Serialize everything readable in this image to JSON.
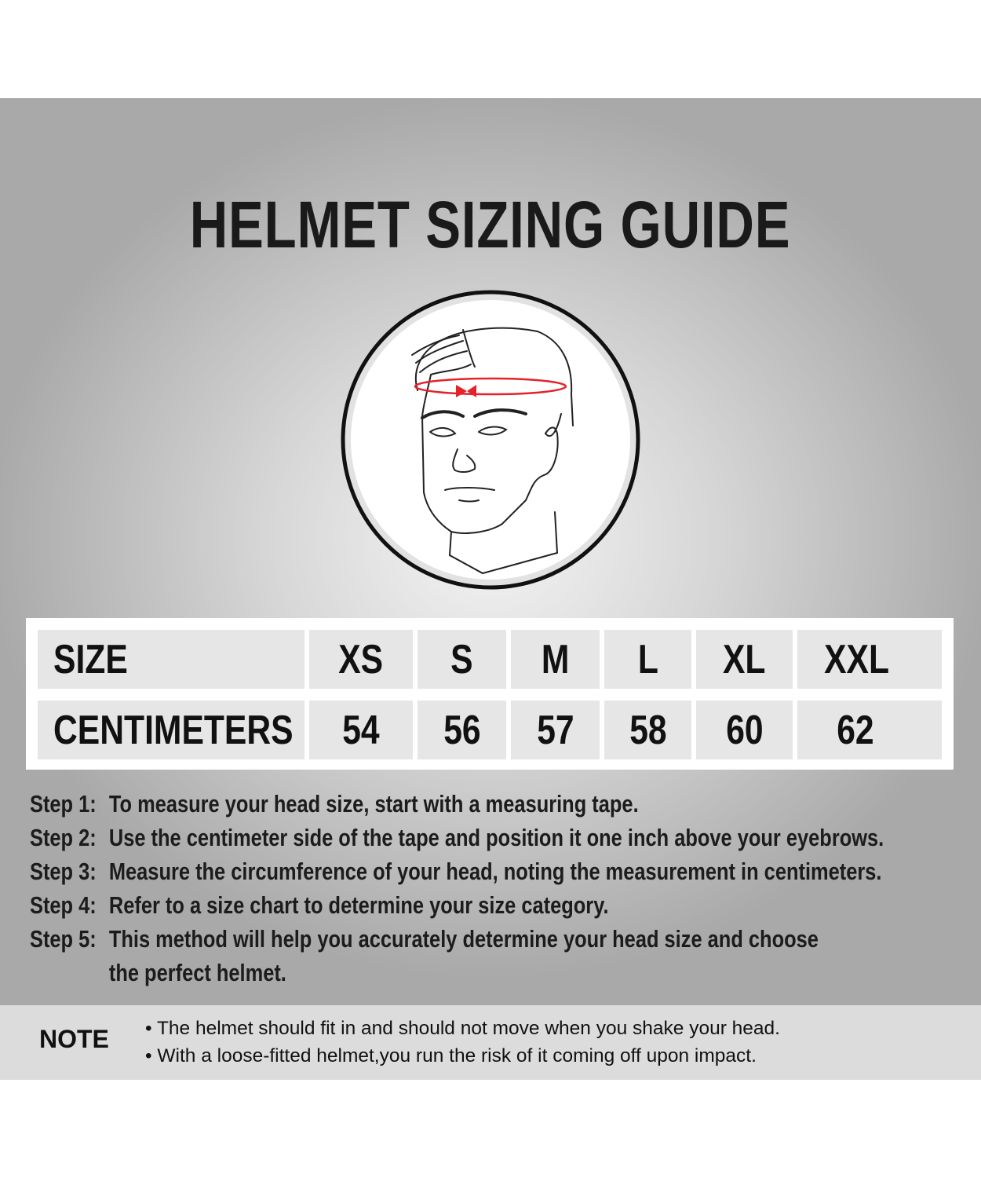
{
  "title": "HELMET SIZING GUIDE",
  "illustration": {
    "icon": "head-measurement-illustration",
    "tape_color": "#e5222a"
  },
  "size_table": {
    "row_headers": [
      "SIZE",
      "CENTIMETERS"
    ],
    "sizes": [
      "XS",
      "S",
      "M",
      "L",
      "XL",
      "XXL"
    ],
    "centimeters": [
      "54",
      "56",
      "57",
      "58",
      "60",
      "62"
    ]
  },
  "steps": [
    {
      "label": "Step 1:",
      "text": "To measure your head size, start with a measuring tape."
    },
    {
      "label": "Step 2:",
      "text": "Use the centimeter side of the tape and position it one inch above your eyebrows."
    },
    {
      "label": "Step 3:",
      "text": "Measure the circumference of your head, noting the measurement in centimeters."
    },
    {
      "label": "Step 4:",
      "text": "Refer to a size chart to determine your size category."
    },
    {
      "label": "Step 5:",
      "text": "This method will help you accurately determine your head size and choose",
      "continuation": "the perfect helmet."
    }
  ],
  "note": {
    "label": "NOTE",
    "items": [
      "• The helmet should fit in and should not move when you shake your head.",
      "• With a loose-fitted helmet,you run the risk of it coming off upon impact."
    ]
  }
}
